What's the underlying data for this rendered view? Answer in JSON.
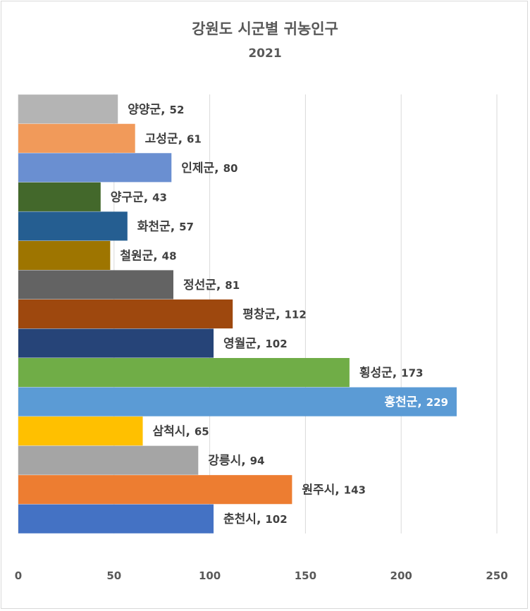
{
  "chart_data": {
    "type": "bar",
    "orientation": "horizontal",
    "title": "강원도 시군별 귀농인구",
    "subtitle": "2021",
    "categories": [
      "양양군",
      "고성군",
      "인제군",
      "양구군",
      "화천군",
      "철원군",
      "정선군",
      "평창군",
      "영월군",
      "횡성군",
      "홍천군",
      "삼척시",
      "강릉시",
      "원주시",
      "춘천시"
    ],
    "values": [
      52,
      61,
      80,
      43,
      57,
      48,
      81,
      112,
      102,
      173,
      229,
      65,
      94,
      143,
      102
    ],
    "colors": [
      "#b4b4b4",
      "#f19a5a",
      "#6a8fd1",
      "#43682b",
      "#255e91",
      "#9e7500",
      "#636363",
      "#9e480e",
      "#264478",
      "#70ad47",
      "#5b9bd5",
      "#ffc000",
      "#a5a5a5",
      "#ed7d31",
      "#4472c4"
    ],
    "xlim": [
      0,
      250
    ],
    "xticks": [
      "0",
      "50",
      "100",
      "150",
      "200",
      "250"
    ],
    "grid": true,
    "legend": "none"
  }
}
